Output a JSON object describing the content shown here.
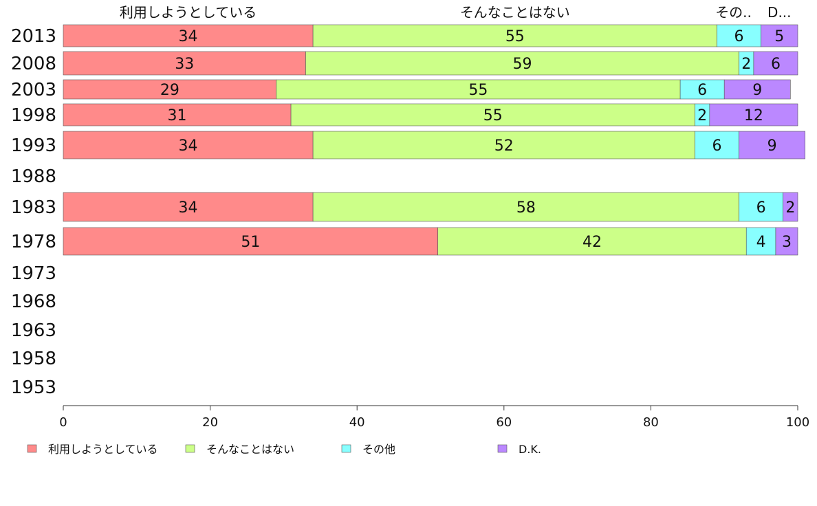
{
  "chart_data": {
    "type": "bar",
    "orientation": "horizontal",
    "stacked": true,
    "categories": [
      "2013",
      "2008",
      "2003",
      "1998",
      "1993",
      "1988",
      "1983",
      "1978",
      "1973",
      "1968",
      "1963",
      "1958",
      "1953"
    ],
    "series": [
      {
        "name": "利用しようとしている",
        "color": "#ff8a8a",
        "values": [
          34,
          33,
          29,
          31,
          34,
          null,
          34,
          51,
          null,
          null,
          null,
          null,
          null
        ]
      },
      {
        "name": "そんなことはない",
        "color": "#ccff88",
        "values": [
          55,
          59,
          55,
          55,
          52,
          null,
          58,
          42,
          null,
          null,
          null,
          null,
          null
        ]
      },
      {
        "name": "その他",
        "color": "#88ffff",
        "values": [
          6,
          2,
          6,
          2,
          6,
          null,
          6,
          4,
          null,
          null,
          null,
          null,
          null
        ]
      },
      {
        "name": "D.K.",
        "color": "#bb88ff",
        "values": [
          5,
          6,
          9,
          12,
          9,
          null,
          2,
          3,
          null,
          null,
          null,
          null,
          null
        ]
      }
    ],
    "top_labels": [
      "利用しようとしている",
      "そんなことはない",
      "その..",
      "D..."
    ],
    "xlim": [
      0,
      100
    ],
    "x_ticks": [
      "0",
      "20",
      "40",
      "60",
      "80",
      "100"
    ],
    "legend_position": "bottom",
    "grid": false
  }
}
